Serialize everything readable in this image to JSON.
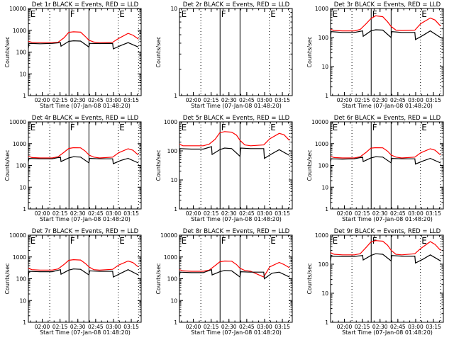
{
  "chart_data": {
    "type": "line",
    "x_units": "minutes after start time",
    "xlim": [
      0,
      95
    ],
    "xlabel": "Start Time (07-Jan-08 01:48:20)",
    "ylabel": "Counts/sec",
    "yscale": "log",
    "x_ticks": [
      {
        "t": 11.67,
        "label": "02:00"
      },
      {
        "t": 26.67,
        "label": "02:15"
      },
      {
        "t": 41.67,
        "label": "02:30"
      },
      {
        "t": 56.67,
        "label": "02:45"
      },
      {
        "t": 71.67,
        "label": "03:00"
      },
      {
        "t": 86.67,
        "label": "03:15"
      }
    ],
    "vlines": [
      {
        "t": 18,
        "style": "dotted"
      },
      {
        "t": 34.2,
        "style": "solid"
      },
      {
        "t": 51,
        "style": "solid"
      },
      {
        "t": 75.7,
        "style": "dotted"
      },
      {
        "t": 92.8,
        "style": "dotted"
      }
    ],
    "markers": [
      {
        "t": 1,
        "label": "E"
      },
      {
        "t": 34.5,
        "label": "F"
      },
      {
        "t": 76,
        "label": "E"
      }
    ],
    "colors": {
      "events": "#000000",
      "lld": "#ff0000"
    },
    "black_t": [
      0,
      0.5,
      10,
      20,
      27,
      27.5,
      34,
      38,
      44,
      51,
      51.5,
      60,
      71,
      71.5,
      78,
      84,
      92.6
    ],
    "red_t": [
      0,
      3,
      10,
      20,
      25,
      30,
      34,
      38,
      44,
      48,
      51,
      55,
      60,
      71,
      76,
      84,
      88,
      92.6
    ],
    "panels": [
      {
        "title": "Det 1r BLACK = Events, RED = LLD",
        "ylim": [
          1,
          10000
        ],
        "events": [
          150,
          250,
          240,
          250,
          270,
          185,
          310,
          330,
          320,
          170,
          250,
          245,
          250,
          140,
          200,
          270,
          170
        ],
        "lld": [
          310,
          280,
          270,
          270,
          280,
          450,
          800,
          850,
          820,
          520,
          350,
          290,
          270,
          280,
          420,
          720,
          600,
          400
        ]
      },
      {
        "title": "Det 2r BLACK = Events, RED = LLD",
        "ylim": [
          1,
          10
        ],
        "events": [],
        "lld": []
      },
      {
        "title": "Det 3r BLACK = Events, RED = LLD",
        "ylim": [
          1,
          1000
        ],
        "events": [
          100,
          160,
          150,
          150,
          170,
          110,
          170,
          185,
          180,
          100,
          160,
          150,
          150,
          85,
          120,
          170,
          100
        ],
        "lld": [
          190,
          175,
          170,
          170,
          190,
          300,
          450,
          560,
          520,
          350,
          240,
          180,
          175,
          180,
          300,
          470,
          400,
          250
        ]
      },
      {
        "title": "Det 4r BLACK = Events, RED = LLD",
        "ylim": [
          1,
          10000
        ],
        "events": [
          150,
          210,
          200,
          200,
          240,
          150,
          220,
          250,
          240,
          130,
          210,
          200,
          200,
          120,
          170,
          210,
          130
        ],
        "lld": [
          260,
          230,
          220,
          220,
          250,
          400,
          600,
          650,
          640,
          450,
          300,
          240,
          220,
          240,
          380,
          580,
          500,
          300
        ]
      },
      {
        "title": "Det 5r BLACK = Events, RED = LLD",
        "ylim": [
          1,
          1000
        ],
        "events": [
          80,
          120,
          115,
          115,
          140,
          75,
          110,
          125,
          120,
          65,
          125,
          120,
          120,
          55,
          80,
          110,
          70
        ],
        "lld": [
          170,
          150,
          150,
          150,
          170,
          250,
          420,
          460,
          440,
          350,
          230,
          160,
          150,
          160,
          260,
          400,
          360,
          230
        ]
      },
      {
        "title": "Det 6r BLACK = Events, RED = LLD",
        "ylim": [
          1,
          10000
        ],
        "events": [
          150,
          200,
          195,
          200,
          240,
          150,
          220,
          250,
          240,
          130,
          210,
          200,
          200,
          115,
          160,
          210,
          130
        ],
        "lld": [
          260,
          230,
          220,
          220,
          250,
          400,
          620,
          650,
          640,
          450,
          300,
          240,
          220,
          240,
          380,
          580,
          500,
          300
        ]
      },
      {
        "title": "Det 7r BLACK = Events, RED = LLD",
        "ylim": [
          1,
          10000
        ],
        "events": [
          120,
          220,
          210,
          210,
          260,
          160,
          250,
          280,
          270,
          150,
          230,
          220,
          220,
          120,
          180,
          260,
          150
        ],
        "lld": [
          300,
          260,
          250,
          250,
          280,
          450,
          700,
          750,
          720,
          500,
          350,
          260,
          250,
          270,
          420,
          650,
          550,
          350
        ]
      },
      {
        "title": "Det 8r BLACK = Events, RED = LLD",
        "ylim": [
          1,
          10000
        ],
        "events": [
          120,
          200,
          190,
          190,
          260,
          150,
          210,
          240,
          230,
          120,
          210,
          200,
          200,
          100,
          180,
          200,
          120
        ],
        "lld": [
          260,
          230,
          220,
          220,
          250,
          400,
          600,
          650,
          640,
          450,
          300,
          240,
          220,
          120,
          350,
          560,
          450,
          320
        ]
      },
      {
        "title": "Det 9r BLACK = Events, RED = LLD",
        "ylim": [
          1,
          1000
        ],
        "events": [
          130,
          190,
          185,
          185,
          200,
          140,
          200,
          230,
          220,
          130,
          200,
          190,
          190,
          110,
          150,
          210,
          130
        ],
        "lld": [
          250,
          220,
          210,
          210,
          230,
          380,
          580,
          650,
          620,
          450,
          300,
          220,
          210,
          230,
          350,
          600,
          480,
          300
        ]
      }
    ]
  }
}
